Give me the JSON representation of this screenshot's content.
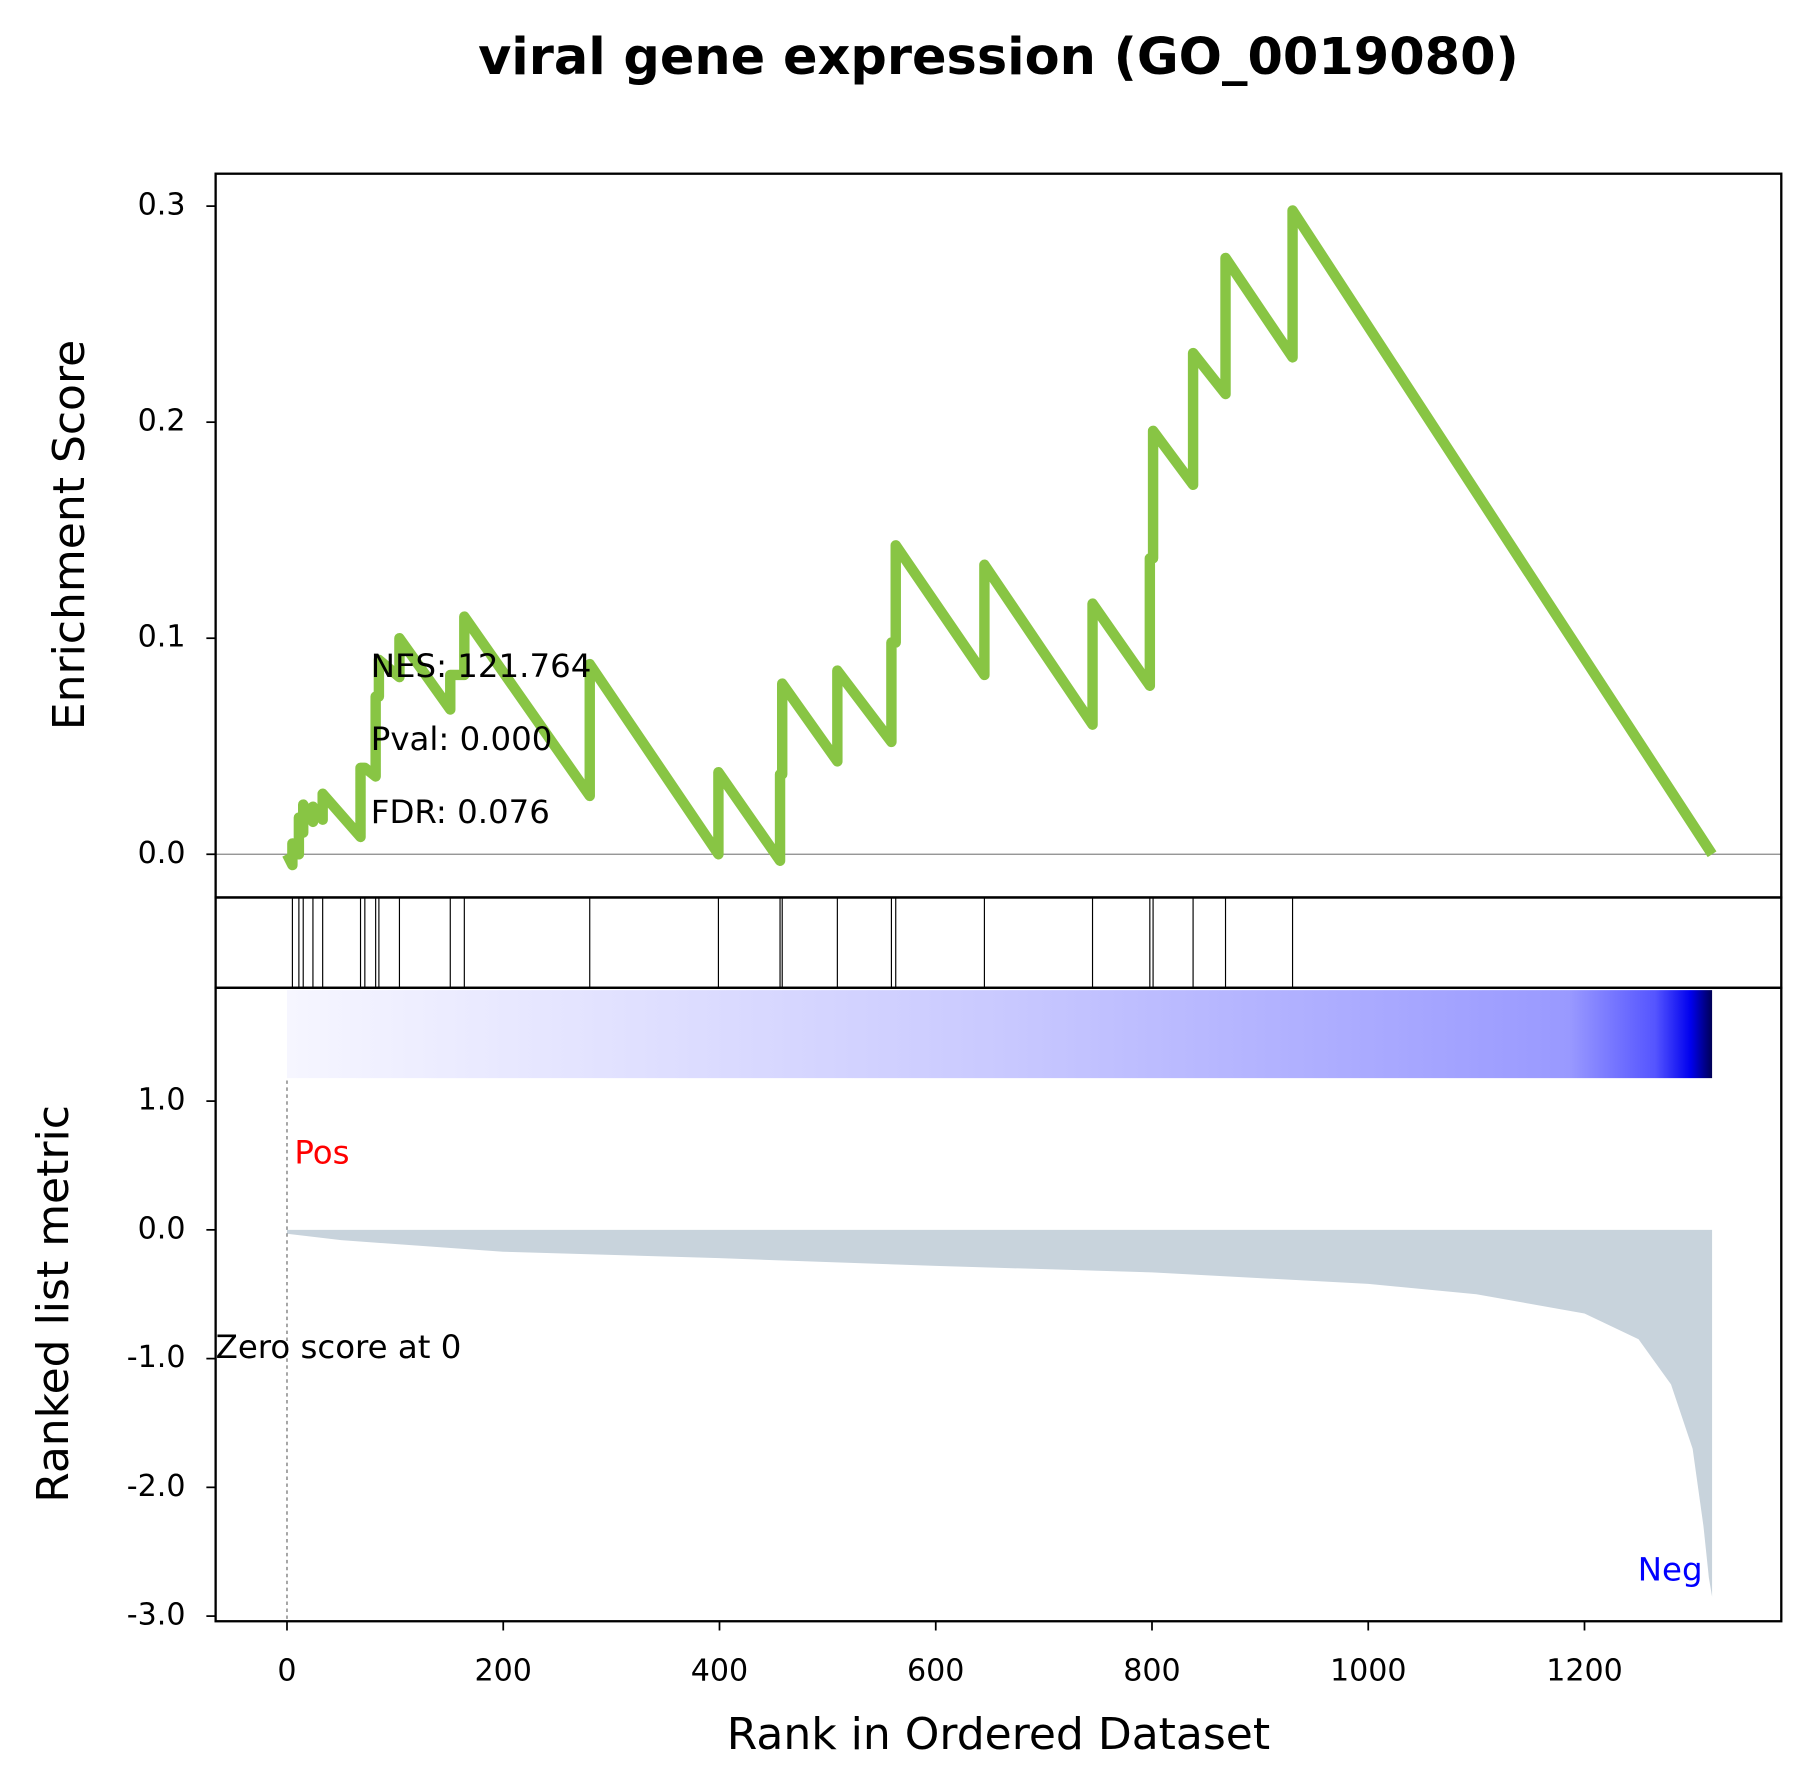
{
  "chart_data": [
    {
      "type": "line",
      "title": "viral gene expression (GO_0019080)",
      "ylabel": "Enrichment Score",
      "color": "#88c544",
      "x": [
        0,
        5,
        5,
        11,
        11,
        15,
        15,
        24,
        24,
        33,
        33,
        68,
        68,
        72,
        82,
        82,
        85,
        85,
        104,
        104,
        151,
        151,
        164,
        164,
        280,
        280,
        399,
        399,
        456,
        456,
        458,
        458,
        509,
        509,
        559,
        559,
        563,
        563,
        645,
        645,
        745,
        745,
        798,
        798,
        801,
        801,
        838,
        838,
        868,
        868,
        930,
        930,
        1318
      ],
      "values": [
        0.0,
        -0.005,
        0.005,
        0.0,
        0.017,
        0.01,
        0.023,
        0.015,
        0.022,
        0.016,
        0.028,
        0.008,
        0.04,
        0.04,
        0.036,
        0.073,
        0.073,
        0.09,
        0.082,
        0.1,
        0.067,
        0.083,
        0.083,
        0.11,
        0.027,
        0.088,
        0.0,
        0.038,
        -0.003,
        0.037,
        0.037,
        0.079,
        0.043,
        0.085,
        0.052,
        0.098,
        0.098,
        0.143,
        0.083,
        0.134,
        0.06,
        0.116,
        0.078,
        0.137,
        0.137,
        0.196,
        0.171,
        0.232,
        0.213,
        0.276,
        0.23,
        0.298,
        0.0
      ],
      "xlim": [
        -66,
        1382
      ],
      "ylim": [
        -0.02,
        0.315
      ],
      "yticks": [
        {
          "value": 0,
          "label": "0.0"
        },
        0.1,
        0.2,
        0.3
      ],
      "annotations": [
        "NES: 121.764",
        "Pval: 0.000",
        "FDR: 0.076"
      ]
    },
    {
      "type": "rug",
      "x": [
        5,
        11,
        15,
        24,
        33,
        68,
        72,
        82,
        85,
        104,
        151,
        164,
        280,
        399,
        456,
        458,
        509,
        559,
        563,
        645,
        745,
        798,
        801,
        838,
        868,
        930
      ],
      "xlim": [
        -66,
        1382
      ]
    },
    {
      "type": "area",
      "xlabel": "Rank in Ordered Dataset",
      "ylabel": "Ranked list metric",
      "color": "#c8d3dc",
      "x": [
        0,
        50,
        200,
        400,
        600,
        800,
        1000,
        1100,
        1200,
        1250,
        1280,
        1300,
        1310,
        1315,
        1318
      ],
      "values": [
        -0.03,
        -0.08,
        -0.17,
        -0.22,
        -0.28,
        -0.33,
        -0.42,
        -0.5,
        -0.65,
        -0.85,
        -1.2,
        -1.7,
        -2.3,
        -2.7,
        -2.85
      ],
      "xlim": [
        -66,
        1382
      ],
      "ylim": [
        -3.04,
        1.88
      ],
      "xticks": [
        0,
        200,
        400,
        600,
        800,
        1000,
        1200
      ],
      "yticks": [
        {
          "value": 1,
          "label": "1.0"
        },
        {
          "value": 0,
          "label": "0.0"
        },
        {
          "value": -1,
          "label": "-1.0"
        },
        {
          "value": -2,
          "label": "-2.0"
        },
        {
          "value": -3,
          "label": "-3.0"
        }
      ],
      "annotations": [
        "Pos",
        "Neg",
        "Zero score at 0"
      ]
    }
  ]
}
